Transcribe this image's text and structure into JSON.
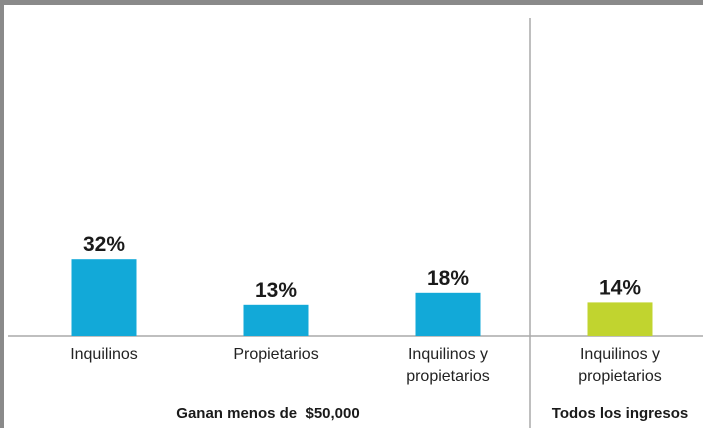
{
  "chart_data": {
    "type": "bar",
    "categories": [
      "Inquilinos",
      "Propietarios",
      "Inquilinos y propietarios",
      "Inquilinos y propietarios"
    ],
    "values": [
      32,
      13,
      18,
      14
    ],
    "value_labels": [
      "32%",
      "13%",
      "18%",
      "14%"
    ],
    "colors": [
      "#12a9d8",
      "#12a9d8",
      "#12a9d8",
      "#c1d42f"
    ],
    "groups": [
      "Ganan menos de  $50,000",
      "Todos los ingresos"
    ]
  }
}
